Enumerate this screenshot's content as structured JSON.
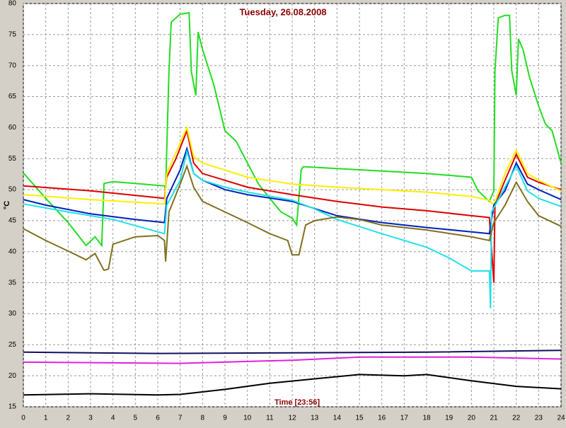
{
  "chart_data": {
    "type": "line",
    "title": "Tuesday, 26.08.2008",
    "x_label": "Time [23:56]",
    "y_label": "°C",
    "xlim": [
      0,
      24
    ],
    "xticks": [
      0,
      1,
      2,
      3,
      4,
      5,
      6,
      7,
      8,
      9,
      10,
      11,
      12,
      13,
      14,
      15,
      16,
      17,
      18,
      19,
      20,
      21,
      22,
      23,
      24
    ],
    "ylim": [
      15,
      80
    ],
    "yticks": [
      15,
      20,
      25,
      30,
      35,
      40,
      45,
      50,
      55,
      60,
      65,
      70,
      75,
      80
    ],
    "grid": true,
    "series": [
      {
        "color": "#22dd22",
        "x": [
          0,
          1,
          2,
          2.8,
          3.2,
          3.5,
          3.6,
          4,
          6.3,
          6.35,
          6.5,
          6.6,
          7,
          7.4,
          7.5,
          7.7,
          7.8,
          8,
          8.5,
          9,
          9.5,
          10,
          10.5,
          11,
          11.5,
          12,
          12.2,
          12.4,
          12.5,
          15,
          18,
          20,
          20.3,
          20.8,
          21,
          21.05,
          21.2,
          21.5,
          21.7,
          21.8,
          22,
          22.1,
          22.3,
          22.6,
          23,
          23.3,
          23.6,
          24
        ],
        "values": [
          52.7,
          48.6,
          44.7,
          41,
          42.4,
          41,
          51,
          51.3,
          50.6,
          50,
          69,
          77,
          78.3,
          78.5,
          69,
          65.2,
          75.4,
          72.6,
          66.9,
          59.5,
          57.8,
          54.3,
          50.9,
          48.6,
          46.4,
          45.4,
          44.3,
          53.2,
          53.7,
          53.2,
          52.6,
          52,
          49.8,
          48.1,
          49.8,
          69.2,
          77.7,
          78.1,
          78.1,
          69.2,
          65.2,
          74.3,
          72.6,
          68,
          63.5,
          60.6,
          59.5,
          54.3
        ]
      },
      {
        "color": "#dd0000",
        "x": [
          0,
          3,
          6.3,
          6.4,
          6.8,
          7.3,
          7.6,
          8,
          9,
          10,
          12,
          14,
          16,
          18,
          20,
          20.8,
          21,
          21.05,
          21.5,
          22,
          22.5,
          23,
          24
        ],
        "values": [
          50.6,
          49.8,
          48.6,
          52,
          54.9,
          59.5,
          54.3,
          52.6,
          51.5,
          50.4,
          49.2,
          48.1,
          47.2,
          46.6,
          45.8,
          45.5,
          35,
          47.5,
          51.5,
          55.7,
          52,
          51.2,
          50
        ]
      },
      {
        "color": "#ffee00",
        "x": [
          0,
          3,
          6.3,
          6.4,
          7.3,
          7.6,
          8,
          10,
          12,
          14,
          16,
          18,
          20,
          20.8,
          21,
          21.5,
          22,
          22.5,
          23,
          24
        ],
        "values": [
          49.2,
          48.4,
          47.7,
          52.6,
          60,
          55.3,
          54.3,
          52,
          50.9,
          50.4,
          50,
          49.6,
          48.9,
          48.3,
          47.5,
          52.6,
          56.4,
          52.6,
          51.5,
          49.8
        ]
      },
      {
        "color": "#0022bb",
        "x": [
          0,
          1,
          3,
          5,
          6.3,
          6.4,
          7,
          7.3,
          7.6,
          8,
          9,
          10,
          12,
          14,
          16,
          18,
          20,
          20.8,
          21,
          21.5,
          22,
          22.5,
          23,
          24
        ],
        "values": [
          48.4,
          47.5,
          46.1,
          45.2,
          44.7,
          48.6,
          53.2,
          56.6,
          52.6,
          51.5,
          50,
          49.2,
          48.1,
          45.8,
          44.7,
          43.9,
          43.2,
          42.9,
          47.5,
          49.8,
          54.3,
          50.9,
          50,
          48.4
        ]
      },
      {
        "color": "#22e0e8",
        "x": [
          0,
          2,
          4,
          6.3,
          6.4,
          7,
          7.3,
          7.6,
          8,
          9,
          10,
          12,
          13,
          14,
          16,
          18,
          19,
          20,
          20.8,
          20.85,
          20.9,
          21.5,
          22,
          22.5,
          23,
          24
        ],
        "values": [
          47.7,
          46.4,
          45.2,
          42.9,
          47.5,
          51.5,
          56.1,
          52.6,
          51.5,
          50.4,
          49.6,
          48.3,
          46.9,
          45.2,
          42.9,
          40.7,
          39,
          36.9,
          36.9,
          30.9,
          46.4,
          50.4,
          53.8,
          49.8,
          48.6,
          47.3
        ]
      },
      {
        "color": "#807020",
        "x": [
          0,
          1,
          2,
          2.8,
          3.2,
          3.6,
          3.8,
          4,
          5,
          6,
          6.3,
          6.35,
          6.5,
          7,
          7.3,
          7.6,
          8,
          9,
          10,
          11,
          11.8,
          12,
          12.3,
          12.6,
          13,
          14,
          15,
          16,
          18,
          20,
          20.8,
          21,
          21.5,
          22,
          22.5,
          23,
          24
        ],
        "values": [
          43.7,
          41.8,
          40.1,
          38.7,
          39.7,
          37,
          37.2,
          41.2,
          42.4,
          42.6,
          41.8,
          38.4,
          46.4,
          50.9,
          53.8,
          50.4,
          48.1,
          46.4,
          44.7,
          42.9,
          41.8,
          39.5,
          39.5,
          44.3,
          45,
          45.6,
          45.2,
          44.3,
          43.5,
          42.4,
          41.8,
          44.7,
          47.5,
          51.2,
          48.1,
          45.8,
          44.1
        ]
      },
      {
        "color": "#101060",
        "x": [
          0,
          6,
          12,
          18,
          24
        ],
        "values": [
          23.8,
          23.6,
          23.7,
          23.8,
          24.1
        ]
      },
      {
        "color": "#e020e0",
        "x": [
          0,
          7,
          12,
          15,
          20,
          24
        ],
        "values": [
          22.2,
          22,
          22.5,
          23,
          23,
          22.7
        ]
      },
      {
        "color": "#000000",
        "x": [
          0,
          3,
          6,
          7,
          9,
          11,
          13,
          15,
          17,
          18,
          20,
          22,
          24
        ],
        "values": [
          16.9,
          17.1,
          16.9,
          17,
          17.8,
          18.8,
          19.5,
          20.2,
          20,
          20.2,
          19.2,
          18.3,
          17.9
        ]
      }
    ]
  }
}
